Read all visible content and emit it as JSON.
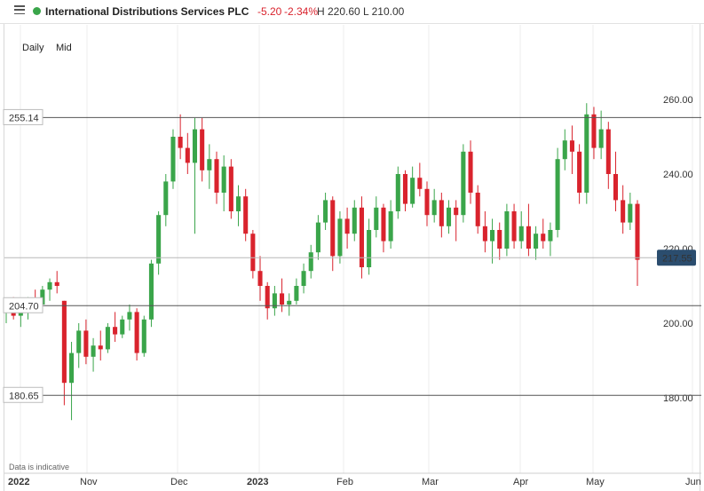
{
  "header": {
    "instrument": "International Distributions Services PLC",
    "change": "-5.20",
    "change_pct": "-2.34%",
    "high_low": "H 220.60 L 210.00",
    "up_color": "#3aa54a",
    "down_color": "#d9232d"
  },
  "periods": [
    "Daily",
    "Mid"
  ],
  "disclaimer": "Data is indicative",
  "chart_data": {
    "type": "candlestick",
    "x_labels": [
      "2022",
      "Nov",
      "Dec",
      "2023",
      "Feb",
      "Mar",
      "Apr",
      "May",
      "Jun"
    ],
    "y_ticks": [
      180,
      200,
      220,
      240,
      260
    ],
    "y_tick_labels": [
      "180.00",
      "200.00",
      "220.00",
      "240.00",
      "260.00"
    ],
    "ylim": [
      165,
      272
    ],
    "current_price": "217.55",
    "horizontal_lines": [
      {
        "label": "255.14",
        "value": 255.14
      },
      {
        "label": "204.70",
        "value": 204.7
      },
      {
        "label": "180.65",
        "value": 180.65
      }
    ],
    "candles": [
      [
        203,
        206,
        200,
        204
      ],
      [
        204,
        207,
        201,
        202
      ],
      [
        202,
        205,
        199,
        203
      ],
      [
        203,
        207,
        201,
        206
      ],
      [
        206,
        209,
        203,
        205
      ],
      [
        205,
        210,
        203,
        209
      ],
      [
        209,
        212,
        206,
        211
      ],
      [
        211,
        214,
        208,
        210
      ],
      [
        206,
        206,
        178,
        184
      ],
      [
        184,
        195,
        174,
        192
      ],
      [
        192,
        200,
        188,
        198
      ],
      [
        198,
        201,
        189,
        191
      ],
      [
        191,
        196,
        187,
        194
      ],
      [
        194,
        198,
        190,
        193
      ],
      [
        193,
        200,
        192,
        199
      ],
      [
        199,
        203,
        195,
        197
      ],
      [
        197,
        202,
        196,
        201
      ],
      [
        201,
        205,
        198,
        203
      ],
      [
        203,
        204,
        190,
        192
      ],
      [
        192,
        202,
        191,
        201
      ],
      [
        201,
        217,
        199,
        216
      ],
      [
        216,
        230,
        213,
        229
      ],
      [
        229,
        240,
        226,
        238
      ],
      [
        238,
        252,
        236,
        250
      ],
      [
        250,
        256,
        244,
        247
      ],
      [
        247,
        251,
        240,
        243
      ],
      [
        243,
        255,
        224,
        252
      ],
      [
        252,
        255,
        238,
        241
      ],
      [
        241,
        248,
        236,
        244
      ],
      [
        244,
        246,
        232,
        235
      ],
      [
        235,
        245,
        230,
        242
      ],
      [
        242,
        244,
        228,
        230
      ],
      [
        230,
        237,
        226,
        234
      ],
      [
        234,
        236,
        222,
        224
      ],
      [
        224,
        225,
        212,
        214
      ],
      [
        214,
        218,
        206,
        210
      ],
      [
        210,
        211,
        201,
        204
      ],
      [
        204,
        210,
        202,
        208
      ],
      [
        208,
        212,
        203,
        205
      ],
      [
        205,
        208,
        202,
        206
      ],
      [
        206,
        212,
        205,
        210
      ],
      [
        210,
        216,
        208,
        214
      ],
      [
        214,
        221,
        212,
        219
      ],
      [
        219,
        229,
        217,
        227
      ],
      [
        227,
        235,
        225,
        233
      ],
      [
        233,
        234,
        214,
        218
      ],
      [
        218,
        230,
        216,
        228
      ],
      [
        228,
        231,
        220,
        224
      ],
      [
        224,
        233,
        222,
        231
      ],
      [
        231,
        234,
        212,
        215
      ],
      [
        215,
        228,
        213,
        225
      ],
      [
        225,
        234,
        223,
        231
      ],
      [
        231,
        232,
        219,
        222
      ],
      [
        222,
        233,
        220,
        230
      ],
      [
        230,
        242,
        228,
        240
      ],
      [
        240,
        241,
        230,
        232
      ],
      [
        232,
        242,
        231,
        239
      ],
      [
        239,
        243,
        234,
        236
      ],
      [
        236,
        238,
        226,
        229
      ],
      [
        229,
        236,
        227,
        233
      ],
      [
        233,
        235,
        223,
        226
      ],
      [
        226,
        233,
        224,
        231
      ],
      [
        231,
        233,
        222,
        229
      ],
      [
        229,
        248,
        227,
        246
      ],
      [
        246,
        249,
        232,
        235
      ],
      [
        235,
        237,
        224,
        226
      ],
      [
        226,
        230,
        219,
        222
      ],
      [
        222,
        228,
        216,
        225
      ],
      [
        225,
        227,
        217,
        220
      ],
      [
        220,
        232,
        218,
        230
      ],
      [
        230,
        232,
        220,
        222
      ],
      [
        222,
        230,
        220,
        226
      ],
      [
        226,
        232,
        218,
        220
      ],
      [
        220,
        226,
        217,
        224
      ],
      [
        224,
        228,
        220,
        222
      ],
      [
        222,
        227,
        218,
        225
      ],
      [
        225,
        247,
        223,
        244
      ],
      [
        244,
        252,
        241,
        249
      ],
      [
        249,
        253,
        240,
        246
      ],
      [
        246,
        248,
        232,
        235
      ],
      [
        235,
        259,
        232,
        256
      ],
      [
        256,
        258,
        244,
        247
      ],
      [
        247,
        257,
        244,
        252
      ],
      [
        252,
        254,
        236,
        240
      ],
      [
        240,
        246,
        230,
        233
      ],
      [
        233,
        237,
        224,
        227
      ],
      [
        227,
        235,
        225,
        232
      ],
      [
        232,
        233,
        210,
        217
      ]
    ]
  }
}
